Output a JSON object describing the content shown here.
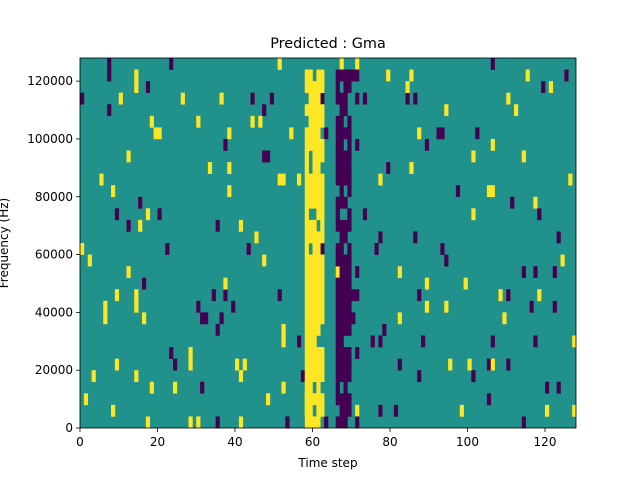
{
  "chart_data": {
    "type": "heatmap",
    "title": "Predicted : Gma",
    "xlabel": "Time step",
    "ylabel": "Frequency (Hz)",
    "xlim": [
      0,
      128
    ],
    "ylim": [
      0,
      128000
    ],
    "grid": false,
    "x_ticks": [
      0,
      20,
      40,
      60,
      80,
      100,
      120
    ],
    "y_ticks": [
      0,
      20000,
      40000,
      60000,
      80000,
      100000,
      120000
    ],
    "x_tick_labels": [
      "0",
      "20",
      "40",
      "60",
      "80",
      "100",
      "120"
    ],
    "y_tick_labels": [
      "0",
      "20000",
      "40000",
      "60000",
      "80000",
      "100000",
      "120000"
    ],
    "colormap": {
      "background": "#21918c",
      "high": "#fde725",
      "low": "#440154"
    },
    "freq_bin_hz": 4000,
    "x_scatter_range": [
      0,
      128
    ],
    "y_bins": 32,
    "random_seed": 7,
    "scatter_density": 0.045,
    "high_ratio": 0.5,
    "vertical_bands": [
      {
        "x": [
          58,
          62
        ],
        "value": "high",
        "coverage": 0.92
      },
      {
        "x": [
          62,
          63
        ],
        "value": "high",
        "coverage": 0.55
      },
      {
        "x": [
          66,
          70
        ],
        "value": "low",
        "coverage": 0.78
      },
      {
        "x": [
          70,
          72
        ],
        "value": "low",
        "coverage": 0.25
      }
    ]
  }
}
